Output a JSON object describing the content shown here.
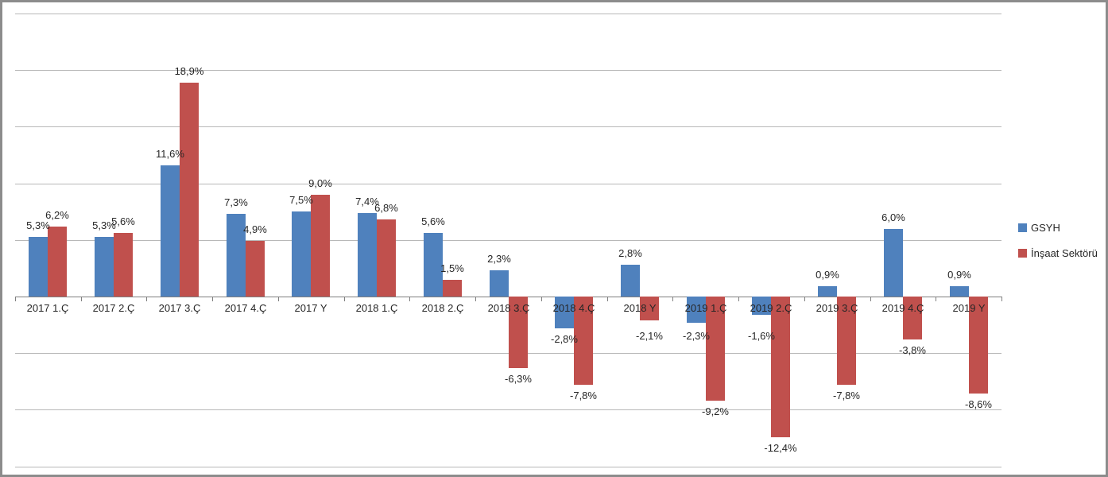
{
  "chart_data": {
    "type": "bar",
    "title": "",
    "xlabel": "",
    "ylabel": "",
    "categories": [
      "2017 1.Ç",
      "2017 2.Ç",
      "2017 3.Ç",
      "2017 4.Ç",
      "2017 Y",
      "2018 1.Ç",
      "2018 2.Ç",
      "2018 3.Ç",
      "2018 4.Ç",
      "2018 Y",
      "2019 1.Ç",
      "2019 2.Ç",
      "2019 3.Ç",
      "2019 4.Ç",
      "2019 Y"
    ],
    "series": [
      {
        "name": "GSYH",
        "color": "#4F81BD",
        "values": [
          5.3,
          5.3,
          11.6,
          7.3,
          7.5,
          7.4,
          5.6,
          2.3,
          -2.8,
          2.8,
          -2.3,
          -1.6,
          0.9,
          6.0,
          0.9
        ],
        "labels": [
          "5,3%",
          "5,3%",
          "11,6%",
          "7,3%",
          "7,5%",
          "7,4%",
          "5,6%",
          "2,3%",
          "-2,8%",
          "2,8%",
          "-2,3%",
          "-1,6%",
          "0,9%",
          "6,0%",
          "0,9%"
        ]
      },
      {
        "name": "İnşaat Sektörü",
        "color": "#C0504D",
        "values": [
          6.2,
          5.6,
          18.9,
          4.9,
          9.0,
          6.8,
          1.5,
          -6.3,
          -7.8,
          -2.1,
          -9.2,
          -12.4,
          -7.8,
          -3.8,
          -8.6
        ],
        "labels": [
          "6,2%",
          "5,6%",
          "18,9%",
          "4,9%",
          "9,0%",
          "6,8%",
          "1,5%",
          "-6,3%",
          "-7,8%",
          "-2,1%",
          "-9,2%",
          "-12,4%",
          "-7,8%",
          "-3,8%",
          "-8,6%"
        ]
      }
    ],
    "ylim": [
      -15,
      25
    ],
    "gridline_step": 5,
    "grid": true,
    "legend_position": "right",
    "value_label_format": "decimal-comma-percent"
  },
  "colors": {
    "gridline": "#b8b8b8",
    "axis": "#808080",
    "frame_border": "#8c8c8c",
    "label_text": "#262626"
  }
}
